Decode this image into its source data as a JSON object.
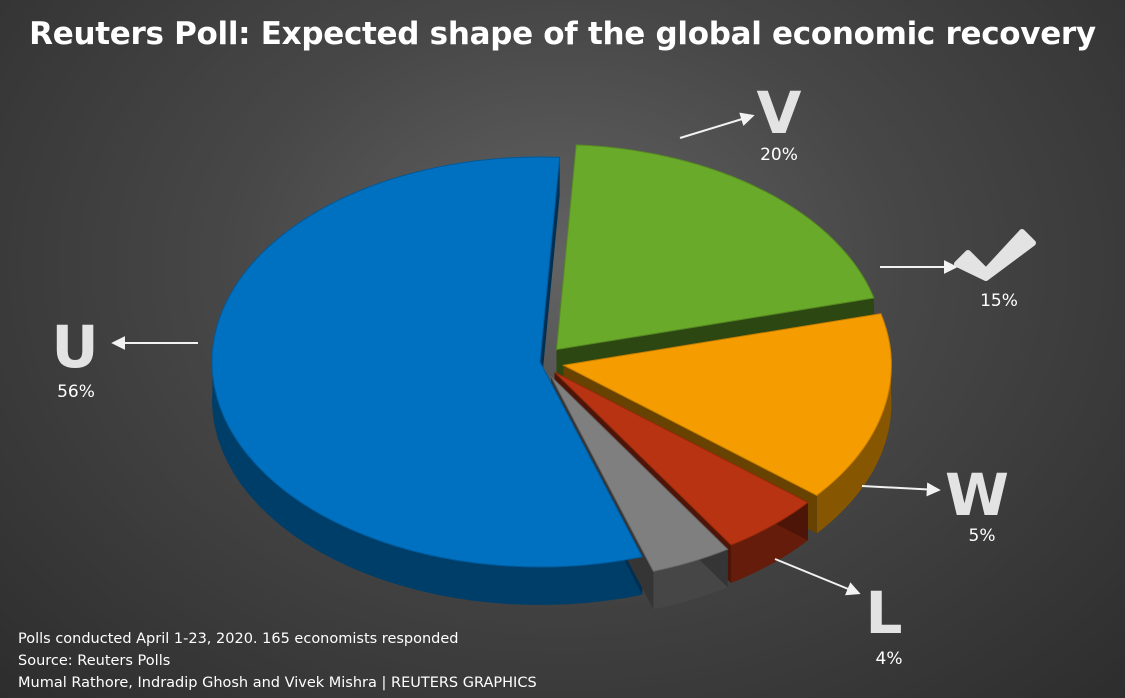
{
  "chart_data": {
    "type": "pie",
    "title": "Reuters Poll: Expected shape of the global economic recovery",
    "slices": [
      {
        "label": "U",
        "value": 56,
        "pct_label": "56%",
        "color": "#0070c0"
      },
      {
        "label": "V",
        "value": 20,
        "pct_label": "20%",
        "color": "#6aaa2a"
      },
      {
        "label": "check-mark",
        "value": 15,
        "pct_label": "15%",
        "color": "#f59c00"
      },
      {
        "label": "W",
        "value": 5,
        "pct_label": "5%",
        "color": "#b83312"
      },
      {
        "label": "L",
        "value": 4,
        "pct_label": "4%",
        "color": "#7f7f7f"
      }
    ],
    "style": "3d-exploded"
  },
  "labels": {
    "u": "U",
    "v": "V",
    "w": "W",
    "l": "L"
  },
  "footer": {
    "line1": "Polls conducted April 1-23, 2020. 165 economists responded",
    "line2": "Source: Reuters Polls",
    "line3": "Mumal Rathore, Indradip Ghosh and Vivek Mishra | REUTERS GRAPHICS"
  }
}
